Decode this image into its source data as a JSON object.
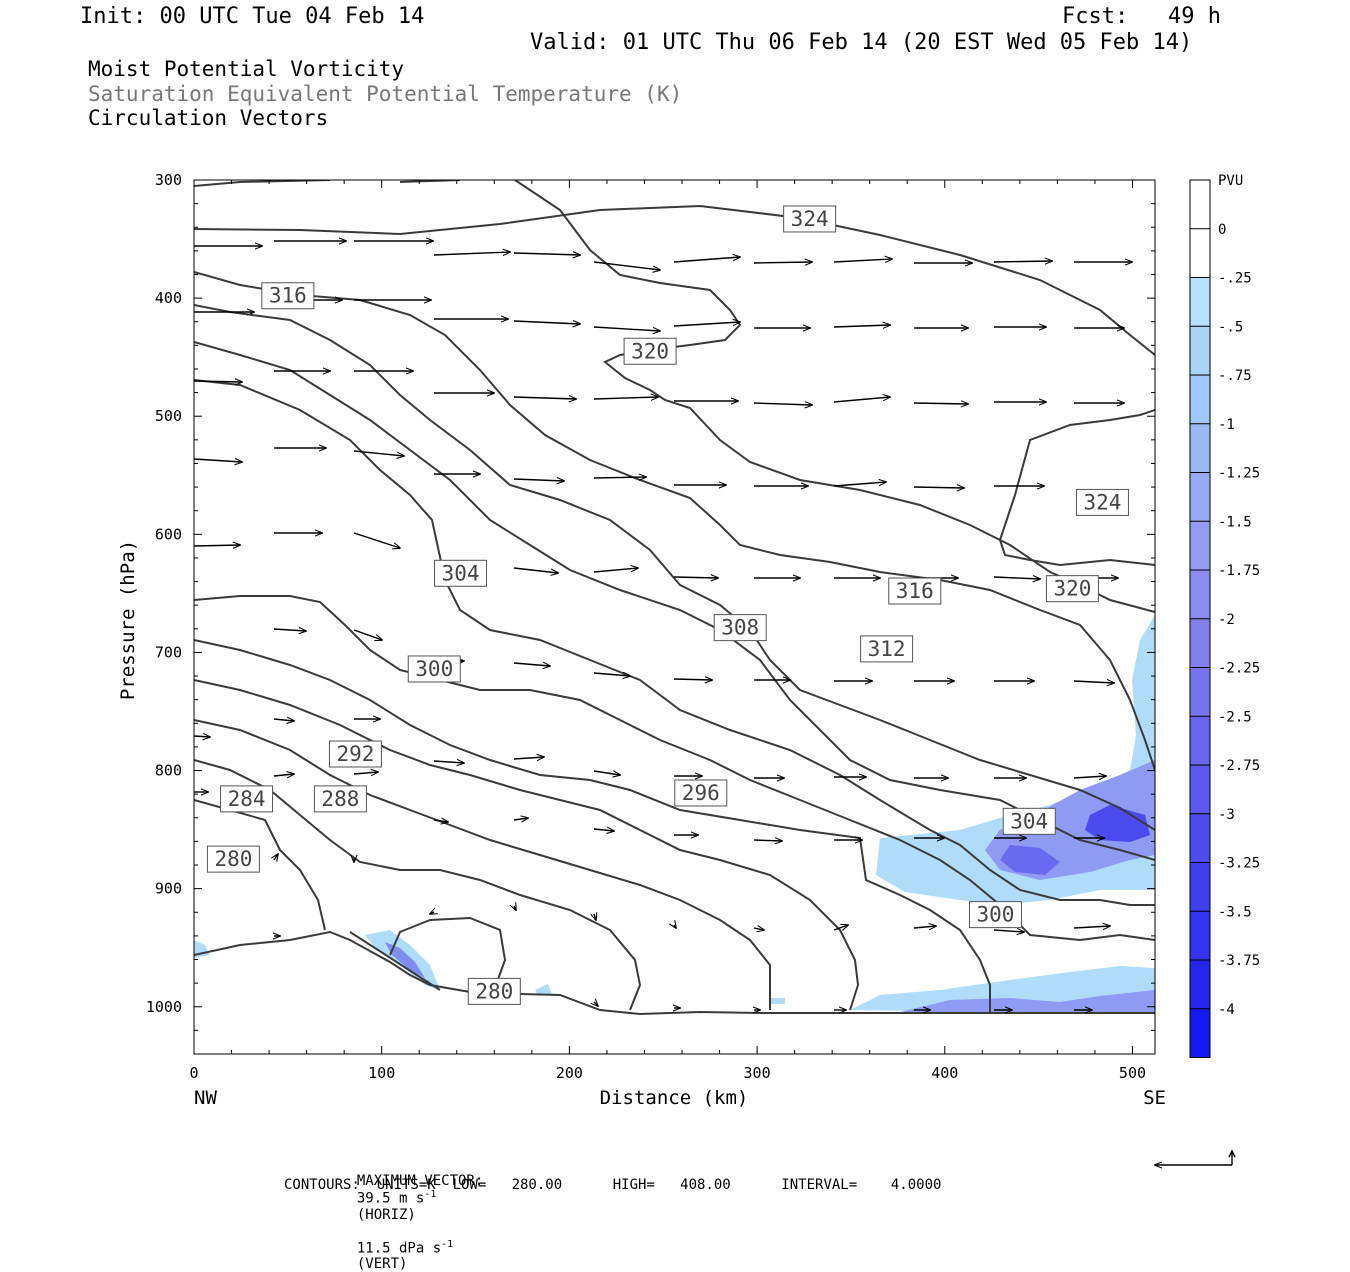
{
  "header": {
    "init": "Init: 00 UTC Tue 04 Feb 14",
    "fcst": "Fcst:   49 h",
    "valid": "Valid: 01 UTC Thu 06 Feb 14 (20 EST Wed 05 Feb 14)",
    "field1": "Moist Potential Vorticity",
    "field2": "Saturation Equivalent Potential Temperature (K)",
    "field3": "Circulation Vectors"
  },
  "footer": {
    "max_vector_prefix": "MAXIMUM VECTOR:",
    "horiz_value": "39.5 m s",
    "horiz_exp": "-1",
    "horiz_suffix": "(HORIZ)",
    "vert_value": "11.5 dPa s",
    "vert_exp": "-1",
    "vert_suffix": "(VERT)",
    "contours": "CONTOURS:  UNITS=K  LOW=   280.00      HIGH=   408.00      INTERVAL=    4.0000"
  },
  "colors": {
    "contour": "#3a3a3a",
    "frame": "#000000",
    "pv_light": "#b0dcfa",
    "pv_mid": "#7f8cf0",
    "pv_dark": "#2020f0"
  },
  "chart_data": {
    "type": "heatmap",
    "title": "Moist Potential Vorticity",
    "xlabel": "Distance (km)",
    "ylabel": "Pressure (hPa)",
    "xlim": [
      0,
      512
    ],
    "ylim": [
      1040,
      300
    ],
    "x_ticks": [
      0,
      100,
      200,
      300,
      400,
      500
    ],
    "y_ticks": [
      300,
      400,
      500,
      600,
      700,
      800,
      900,
      1000
    ],
    "x_end_labels": {
      "left": "NW",
      "right": "SE"
    },
    "colorbar": {
      "unit": "PVU",
      "levels": [
        "0",
        "-.25",
        "-.5",
        "-.75",
        "-1",
        "-1.25",
        "-1.5",
        "-1.75",
        "-2",
        "-2.25",
        "-2.5",
        "-2.75",
        "-3",
        "-3.25",
        "-3.5",
        "-3.75",
        "-4"
      ],
      "colors": [
        "#ffffff",
        "#ffffff",
        "#b8e2fc",
        "#a9d4fa",
        "#9fc6f8",
        "#9bb8f6",
        "#97aaf4",
        "#919cf2",
        "#8a8ef0",
        "#8080ee",
        "#7474ee",
        "#6767ee",
        "#5a5aee",
        "#4c4cef",
        "#3f3fef",
        "#3232f0",
        "#2525f1",
        "#1818f2"
      ]
    },
    "theta_labels": [
      {
        "value": "324",
        "x": 328,
        "p": 333
      },
      {
        "value": "316",
        "x": 50,
        "p": 398
      },
      {
        "value": "320",
        "x": 243,
        "p": 445
      },
      {
        "value": "324",
        "x": 484,
        "p": 573
      },
      {
        "value": "304",
        "x": 142,
        "p": 633
      },
      {
        "value": "316",
        "x": 384,
        "p": 648
      },
      {
        "value": "320",
        "x": 468,
        "p": 646
      },
      {
        "value": "308",
        "x": 291,
        "p": 679
      },
      {
        "value": "312",
        "x": 369,
        "p": 697
      },
      {
        "value": "300",
        "x": 128,
        "p": 714
      },
      {
        "value": "292",
        "x": 86,
        "p": 786
      },
      {
        "value": "284",
        "x": 28,
        "p": 824
      },
      {
        "value": "288",
        "x": 78,
        "p": 824
      },
      {
        "value": "296",
        "x": 270,
        "p": 819
      },
      {
        "value": "304",
        "x": 445,
        "p": 843
      },
      {
        "value": "280",
        "x": 21,
        "p": 875
      },
      {
        "value": "300",
        "x": 427,
        "p": 922
      },
      {
        "value": "280",
        "x": 160,
        "p": 987
      }
    ]
  }
}
